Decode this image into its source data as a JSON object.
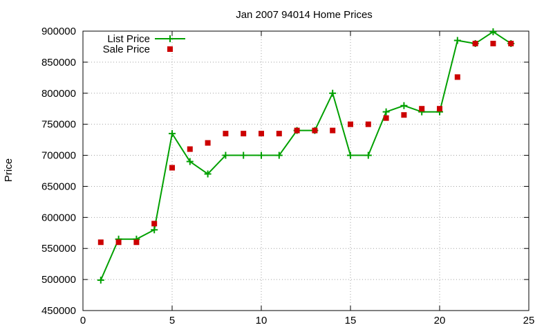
{
  "chart_data": {
    "type": "line",
    "title": "Jan 2007 94014 Home Prices",
    "xlabel": "",
    "ylabel": "Price",
    "xlim": [
      0,
      25
    ],
    "ylim": [
      450000,
      900000
    ],
    "x_ticks": [
      0,
      5,
      10,
      15,
      20,
      25
    ],
    "y_ticks": [
      450000,
      500000,
      550000,
      600000,
      650000,
      700000,
      750000,
      800000,
      850000,
      900000
    ],
    "grid": true,
    "legend_position": "top-left",
    "series": [
      {
        "name": "List Price",
        "style": "line-with-plus-markers",
        "color": "#00a000",
        "x": [
          1,
          2,
          3,
          4,
          5,
          6,
          7,
          8,
          9,
          10,
          11,
          12,
          13,
          14,
          15,
          16,
          17,
          18,
          19,
          20,
          21,
          22,
          23,
          24
        ],
        "values": [
          499000,
          565000,
          565000,
          580000,
          735000,
          690000,
          670000,
          700000,
          700000,
          700000,
          700000,
          740000,
          740000,
          800000,
          700000,
          700000,
          770000,
          780000,
          770000,
          770000,
          885000,
          880000,
          899000,
          880000
        ]
      },
      {
        "name": "Sale Price",
        "style": "square-markers",
        "color": "#cc0000",
        "x": [
          1,
          2,
          3,
          4,
          5,
          6,
          7,
          8,
          9,
          10,
          11,
          12,
          13,
          14,
          15,
          16,
          17,
          18,
          19,
          20,
          21,
          22,
          23,
          24
        ],
        "values": [
          560000,
          560000,
          560000,
          590000,
          680000,
          710000,
          720000,
          735000,
          735000,
          735000,
          735000,
          740000,
          740000,
          740000,
          750000,
          750000,
          760000,
          765000,
          775000,
          775000,
          826000,
          880000,
          880000,
          880000
        ]
      }
    ]
  }
}
